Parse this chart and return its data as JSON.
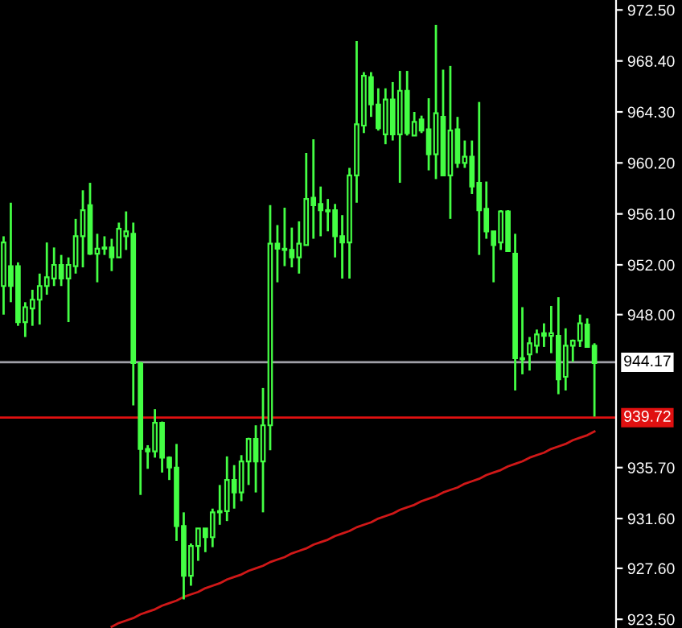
{
  "chart_data": {
    "type": "candlestick",
    "color": "#44ff44",
    "categories": [
      null,
      null,
      null,
      null,
      null,
      null,
      null,
      null,
      null,
      null,
      null,
      null,
      null,
      null,
      null,
      null,
      null,
      null,
      null,
      null,
      null,
      null,
      null,
      null,
      null,
      null,
      null,
      null,
      null,
      null,
      null,
      null,
      null,
      null,
      null,
      null,
      null,
      null,
      null,
      null,
      null,
      null,
      null,
      null,
      null,
      null,
      null,
      null,
      null,
      null,
      null,
      null,
      null,
      null,
      null,
      null,
      null,
      null,
      null,
      null,
      null,
      null,
      null,
      null,
      null,
      null,
      null,
      null,
      null,
      null,
      null,
      null,
      null,
      null,
      null,
      null,
      null,
      null,
      null,
      null,
      null,
      null,
      null
    ],
    "ohlc": [
      [
        950.3,
        954.3,
        948.0,
        953.8
      ],
      [
        951.9,
        957.0,
        949.0,
        950.3
      ],
      [
        951.9,
        952.2,
        947.1,
        947.4
      ],
      [
        947.4,
        949.0,
        946.2,
        948.6
      ],
      [
        948.5,
        950.0,
        947.1,
        949.2
      ],
      [
        949.2,
        951.3,
        947.2,
        950.3
      ],
      [
        950.3,
        953.8,
        949.6,
        951.0
      ],
      [
        950.9,
        953.4,
        950.3,
        952.0
      ],
      [
        952.0,
        952.8,
        950.3,
        950.9
      ],
      [
        950.9,
        952.6,
        947.4,
        952.0
      ],
      [
        951.9,
        955.7,
        951.3,
        954.3
      ],
      [
        954.3,
        958.0,
        951.8,
        956.4
      ],
      [
        956.8,
        958.6,
        952.8,
        952.9
      ],
      [
        952.9,
        954.5,
        950.6,
        953.3
      ],
      [
        953.3,
        954.3,
        952.8,
        953.4
      ],
      [
        953.4,
        954.1,
        951.5,
        952.6
      ],
      [
        952.6,
        955.4,
        952.6,
        954.9
      ],
      [
        954.3,
        956.3,
        953.2,
        954.7
      ],
      [
        954.5,
        955.4,
        940.7,
        944.1
      ],
      [
        944.1,
        944.2,
        933.5,
        937.2
      ],
      [
        937.2,
        937.5,
        935.6,
        937.0
      ],
      [
        937.0,
        940.4,
        936.5,
        939.3
      ],
      [
        939.3,
        939.4,
        935.3,
        936.5
      ],
      [
        936.5,
        936.6,
        934.7,
        935.7
      ],
      [
        935.7,
        937.6,
        929.8,
        931.0
      ],
      [
        931.0,
        932.1,
        925.1,
        927.0
      ],
      [
        927.0,
        929.6,
        926.2,
        929.4
      ],
      [
        929.4,
        930.8,
        928.2,
        930.8
      ],
      [
        930.8,
        930.8,
        928.9,
        930.1
      ],
      [
        930.1,
        932.4,
        929.3,
        932.1
      ],
      [
        932.1,
        934.3,
        931.1,
        932.2
      ],
      [
        932.2,
        936.6,
        931.4,
        934.7
      ],
      [
        934.7,
        935.9,
        932.4,
        933.7
      ],
      [
        933.7,
        936.7,
        933.0,
        936.2
      ],
      [
        936.2,
        938.1,
        934.3,
        938.0
      ],
      [
        938.0,
        939.1,
        933.7,
        936.2
      ],
      [
        936.2,
        942.1,
        932.1,
        939.1
      ],
      [
        939.1,
        956.8,
        937.1,
        953.7
      ],
      [
        953.7,
        955.2,
        950.6,
        953.3
      ],
      [
        953.3,
        956.6,
        951.9,
        953.2
      ],
      [
        953.2,
        955.0,
        951.8,
        952.6
      ],
      [
        952.6,
        955.5,
        951.3,
        953.7
      ],
      [
        953.6,
        961.0,
        953.6,
        957.3
      ],
      [
        957.4,
        962.1,
        954.1,
        956.8
      ],
      [
        956.9,
        958.3,
        954.3,
        956.4
      ],
      [
        956.4,
        957.3,
        954.7,
        956.3
      ],
      [
        956.4,
        956.9,
        952.6,
        954.3
      ],
      [
        954.3,
        956.0,
        950.9,
        953.8
      ],
      [
        953.8,
        959.8,
        950.9,
        959.2
      ],
      [
        959.2,
        970.0,
        957.0,
        963.3
      ],
      [
        963.2,
        967.5,
        962.6,
        967.2
      ],
      [
        967.1,
        967.5,
        963.9,
        964.9
      ],
      [
        964.9,
        966.2,
        962.8,
        963.0
      ],
      [
        962.5,
        966.2,
        961.7,
        965.3
      ],
      [
        965.3,
        966.7,
        962.0,
        962.5
      ],
      [
        962.5,
        967.6,
        958.6,
        966.0
      ],
      [
        966.0,
        967.6,
        962.4,
        962.6
      ],
      [
        962.4,
        964.3,
        962.4,
        963.5
      ],
      [
        963.7,
        964.0,
        962.6,
        962.8
      ],
      [
        962.9,
        965.4,
        959.6,
        960.9
      ],
      [
        960.9,
        971.3,
        958.9,
        964.2
      ],
      [
        963.9,
        967.7,
        959.2,
        959.2
      ],
      [
        959.2,
        968.0,
        955.7,
        962.8
      ],
      [
        962.9,
        963.9,
        959.8,
        960.2
      ],
      [
        960.2,
        962.0,
        959.8,
        960.7
      ],
      [
        960.7,
        962.0,
        957.7,
        958.3
      ],
      [
        958.6,
        965.1,
        952.8,
        956.4
      ],
      [
        956.5,
        958.7,
        954.1,
        954.7
      ],
      [
        954.7,
        954.7,
        950.6,
        953.6
      ],
      [
        953.8,
        956.4,
        953.2,
        956.3
      ],
      [
        956.3,
        956.4,
        953.1,
        953.1
      ],
      [
        952.9,
        954.5,
        941.9,
        944.5
      ],
      [
        944.5,
        948.6,
        943.2,
        944.4
      ],
      [
        944.8,
        946.2,
        943.5,
        945.7
      ],
      [
        945.5,
        946.8,
        944.9,
        946.4
      ],
      [
        946.5,
        947.3,
        945.4,
        946.3
      ],
      [
        946.3,
        948.7,
        944.9,
        946.5
      ],
      [
        946.3,
        949.4,
        941.6,
        942.8
      ],
      [
        943.0,
        946.9,
        941.9,
        945.5
      ],
      [
        945.5,
        946.0,
        944.2,
        945.9
      ],
      [
        945.9,
        948.0,
        945.4,
        947.3
      ],
      [
        947.2,
        947.7,
        945.4,
        945.4
      ],
      [
        945.5,
        945.7,
        939.8,
        944.1
      ]
    ],
    "series": [
      {
        "type": "line",
        "values": [
          null,
          null,
          null,
          null,
          null,
          null,
          null,
          null,
          null,
          null,
          null,
          null,
          null,
          null,
          null,
          922.9,
          923.2,
          923.4,
          923.6,
          923.9,
          924.1,
          924.3,
          924.6,
          924.8,
          925.0,
          925.3,
          925.5,
          925.7,
          926.0,
          926.2,
          926.4,
          926.7,
          926.9,
          927.1,
          927.4,
          927.6,
          927.8,
          928.1,
          928.3,
          928.5,
          928.8,
          929.0,
          929.2,
          929.5,
          929.7,
          929.9,
          930.2,
          930.4,
          930.6,
          930.9,
          931.1,
          931.3,
          931.6,
          931.8,
          932.0,
          932.3,
          932.5,
          932.7,
          933.0,
          933.2,
          933.4,
          933.7,
          933.9,
          934.1,
          934.4,
          934.6,
          934.8,
          935.1,
          935.3,
          935.5,
          935.8,
          936.0,
          936.2,
          936.5,
          936.7,
          936.9,
          937.2,
          937.4,
          937.6,
          937.9,
          938.1,
          938.3,
          938.6
        ],
        "color": "#d01818"
      }
    ],
    "ref_lines": [
      {
        "axis": "y",
        "value": 944.17,
        "label": "944.17",
        "color": "#a0a0a8"
      },
      {
        "axis": "y",
        "value": 939.72,
        "label": "939.72",
        "color": "#e01010"
      }
    ],
    "ylim": [
      922.8,
      973.3
    ],
    "yticks": [
      {
        "value": 923.5,
        "label": "923.50"
      },
      {
        "value": 927.6,
        "label": "927.60"
      },
      {
        "value": 931.6,
        "label": "931.60"
      },
      {
        "value": 935.7,
        "label": "935.70"
      },
      {
        "value": 948.0,
        "label": "948.00"
      },
      {
        "value": 952.0,
        "label": "952.00"
      },
      {
        "value": 956.1,
        "label": "956.10"
      },
      {
        "value": 960.2,
        "label": "960.20"
      },
      {
        "value": 964.3,
        "label": "964.30"
      },
      {
        "value": 968.4,
        "label": "968.40"
      },
      {
        "value": 972.5,
        "label": "972.50"
      }
    ],
    "tick_labels": "y",
    "grid": false,
    "legend": false
  }
}
